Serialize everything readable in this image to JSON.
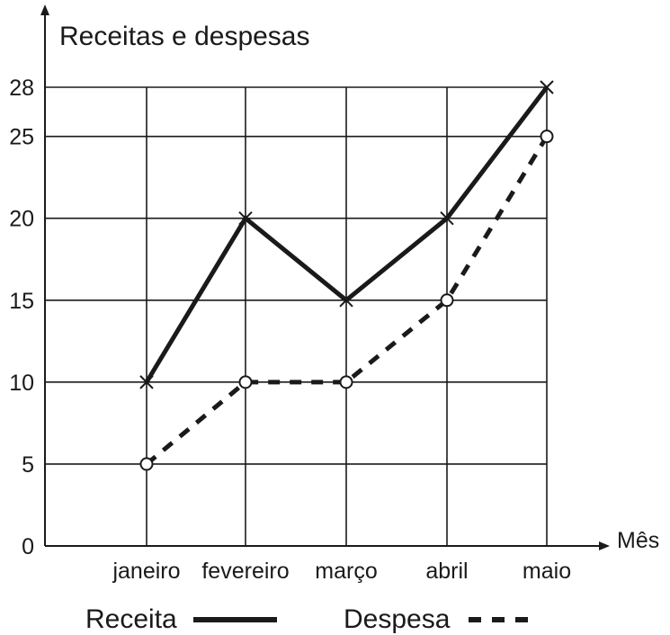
{
  "chart_data": {
    "type": "line",
    "title": "Receitas e despesas",
    "xlabel": "Mês",
    "ylabel": "",
    "categories": [
      "janeiro",
      "fevereiro",
      "março",
      "abril",
      "maio"
    ],
    "yticks": [
      0,
      5,
      10,
      15,
      20,
      25,
      28
    ],
    "ylim": [
      0,
      28
    ],
    "grid": true,
    "legend": "bottom",
    "series": [
      {
        "name": "Receita",
        "values": [
          10,
          20,
          15,
          20,
          28
        ],
        "marker": "cross",
        "line": "solid"
      },
      {
        "name": "Despesa",
        "values": [
          5,
          10,
          10,
          15,
          25
        ],
        "marker": "circle",
        "line": "dashed"
      }
    ],
    "colors": {
      "line": "#1a1a1a",
      "grid": "#1a1a1a"
    }
  }
}
